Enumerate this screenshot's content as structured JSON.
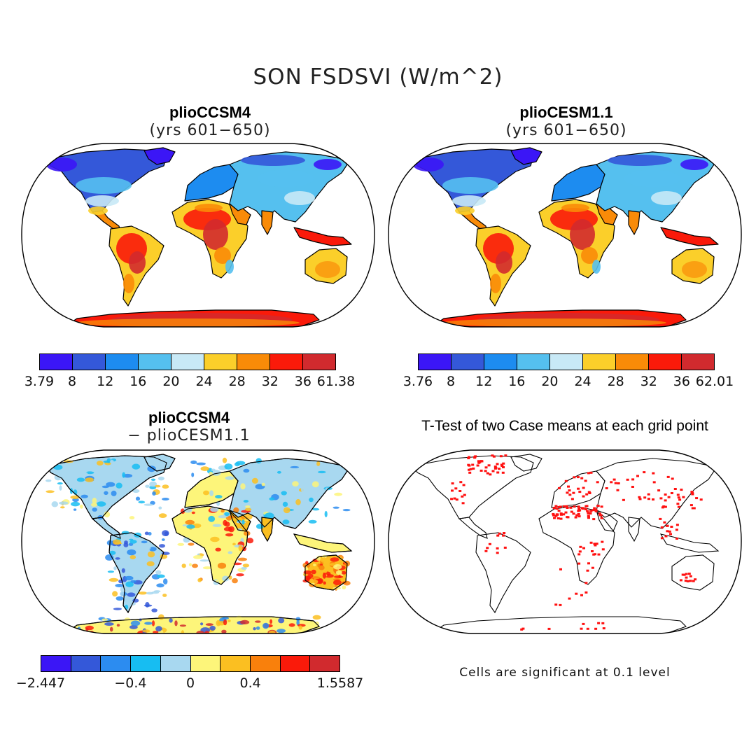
{
  "title": "SON FSDSVI (W/m^2)",
  "panels": [
    {
      "id": "p1",
      "title": "plioCCSM4",
      "subtitle": "(yrs 601−650)",
      "ticks": [
        "3.79",
        "8",
        "12",
        "16",
        "20",
        "24",
        "28",
        "32",
        "36",
        "61.38"
      ],
      "colors": [
        "#3b16f6",
        "#3458d9",
        "#1d8cf0",
        "#55c0ef",
        "#c8e9f6",
        "#fbcf2a",
        "#f98b08",
        "#fa1a0a",
        "#d12a2e"
      ]
    },
    {
      "id": "p2",
      "title": "plioCESM1.1",
      "subtitle": "(yrs 601−650)",
      "ticks": [
        "3.76",
        "8",
        "12",
        "16",
        "20",
        "24",
        "28",
        "32",
        "36",
        "62.01"
      ],
      "colors": [
        "#3b16f6",
        "#3458d9",
        "#1d8cf0",
        "#55c0ef",
        "#c8e9f6",
        "#fbcf2a",
        "#f98b08",
        "#fa1a0a",
        "#d12a2e"
      ]
    },
    {
      "id": "p3",
      "title": "plioCCSM4",
      "subtitle": "− plioCESM1.1",
      "ticks": [
        "−2.447",
        "−0.4",
        "0",
        "0.4",
        "1.5587"
      ],
      "colors": [
        "#3b16f6",
        "#3458d9",
        "#2c8cf0",
        "#17bdf2",
        "#a8d8f0",
        "#fdf57a",
        "#fbbf21",
        "#f9800c",
        "#fa1a0a",
        "#d12a2e"
      ]
    },
    {
      "id": "p4",
      "title": "T-Test of two Case means at each grid point",
      "note": "Cells are significant at 0.1 level",
      "significance_color": "#ff1010"
    }
  ]
}
